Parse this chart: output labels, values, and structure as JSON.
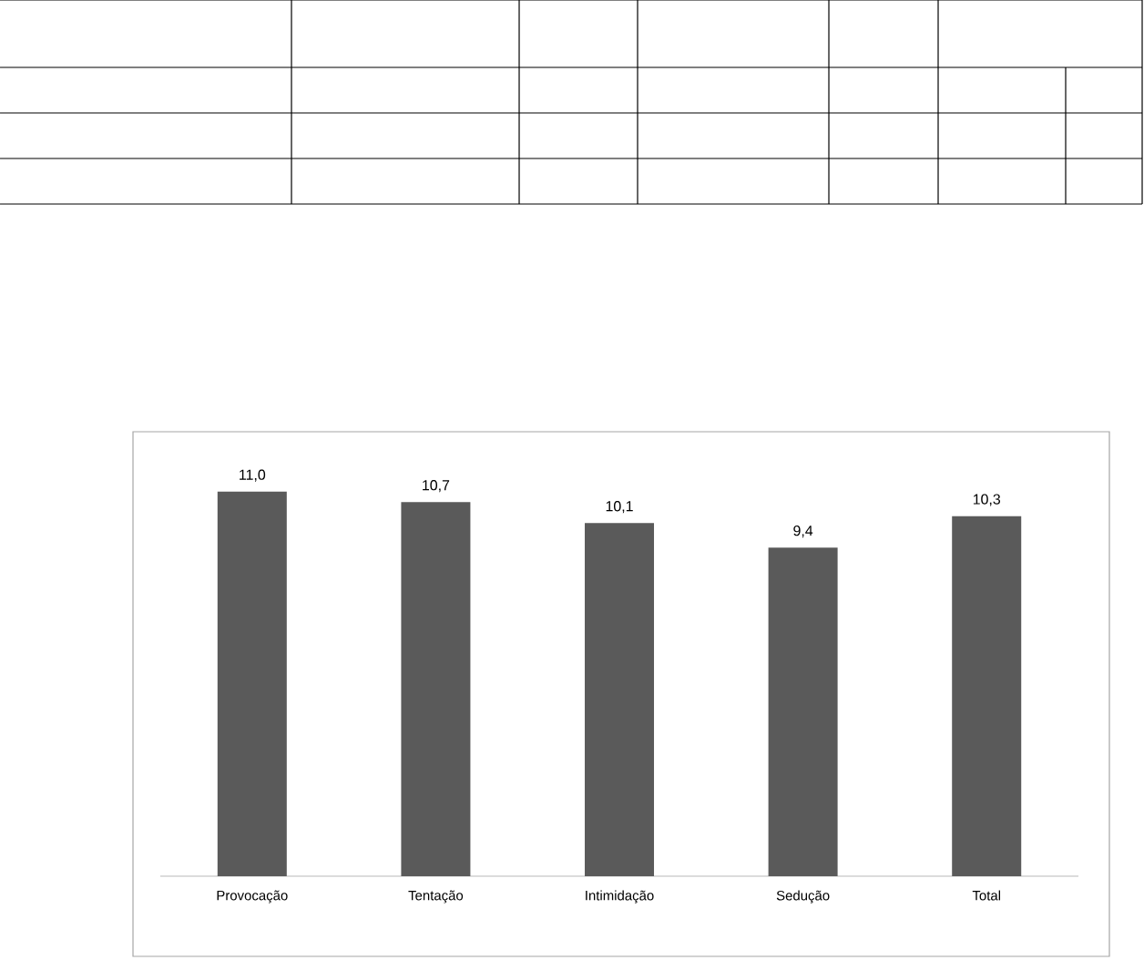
{
  "chart_data": {
    "type": "bar",
    "categories": [
      "Provocação",
      "Tentação",
      "Intimidação",
      "Sedução",
      "Total"
    ],
    "values": [
      11.0,
      10.7,
      10.1,
      9.4,
      10.3
    ],
    "value_labels": [
      "11,0",
      "10,7",
      "10,1",
      "9,4",
      "10,3"
    ],
    "color": "#5a5a5a"
  }
}
